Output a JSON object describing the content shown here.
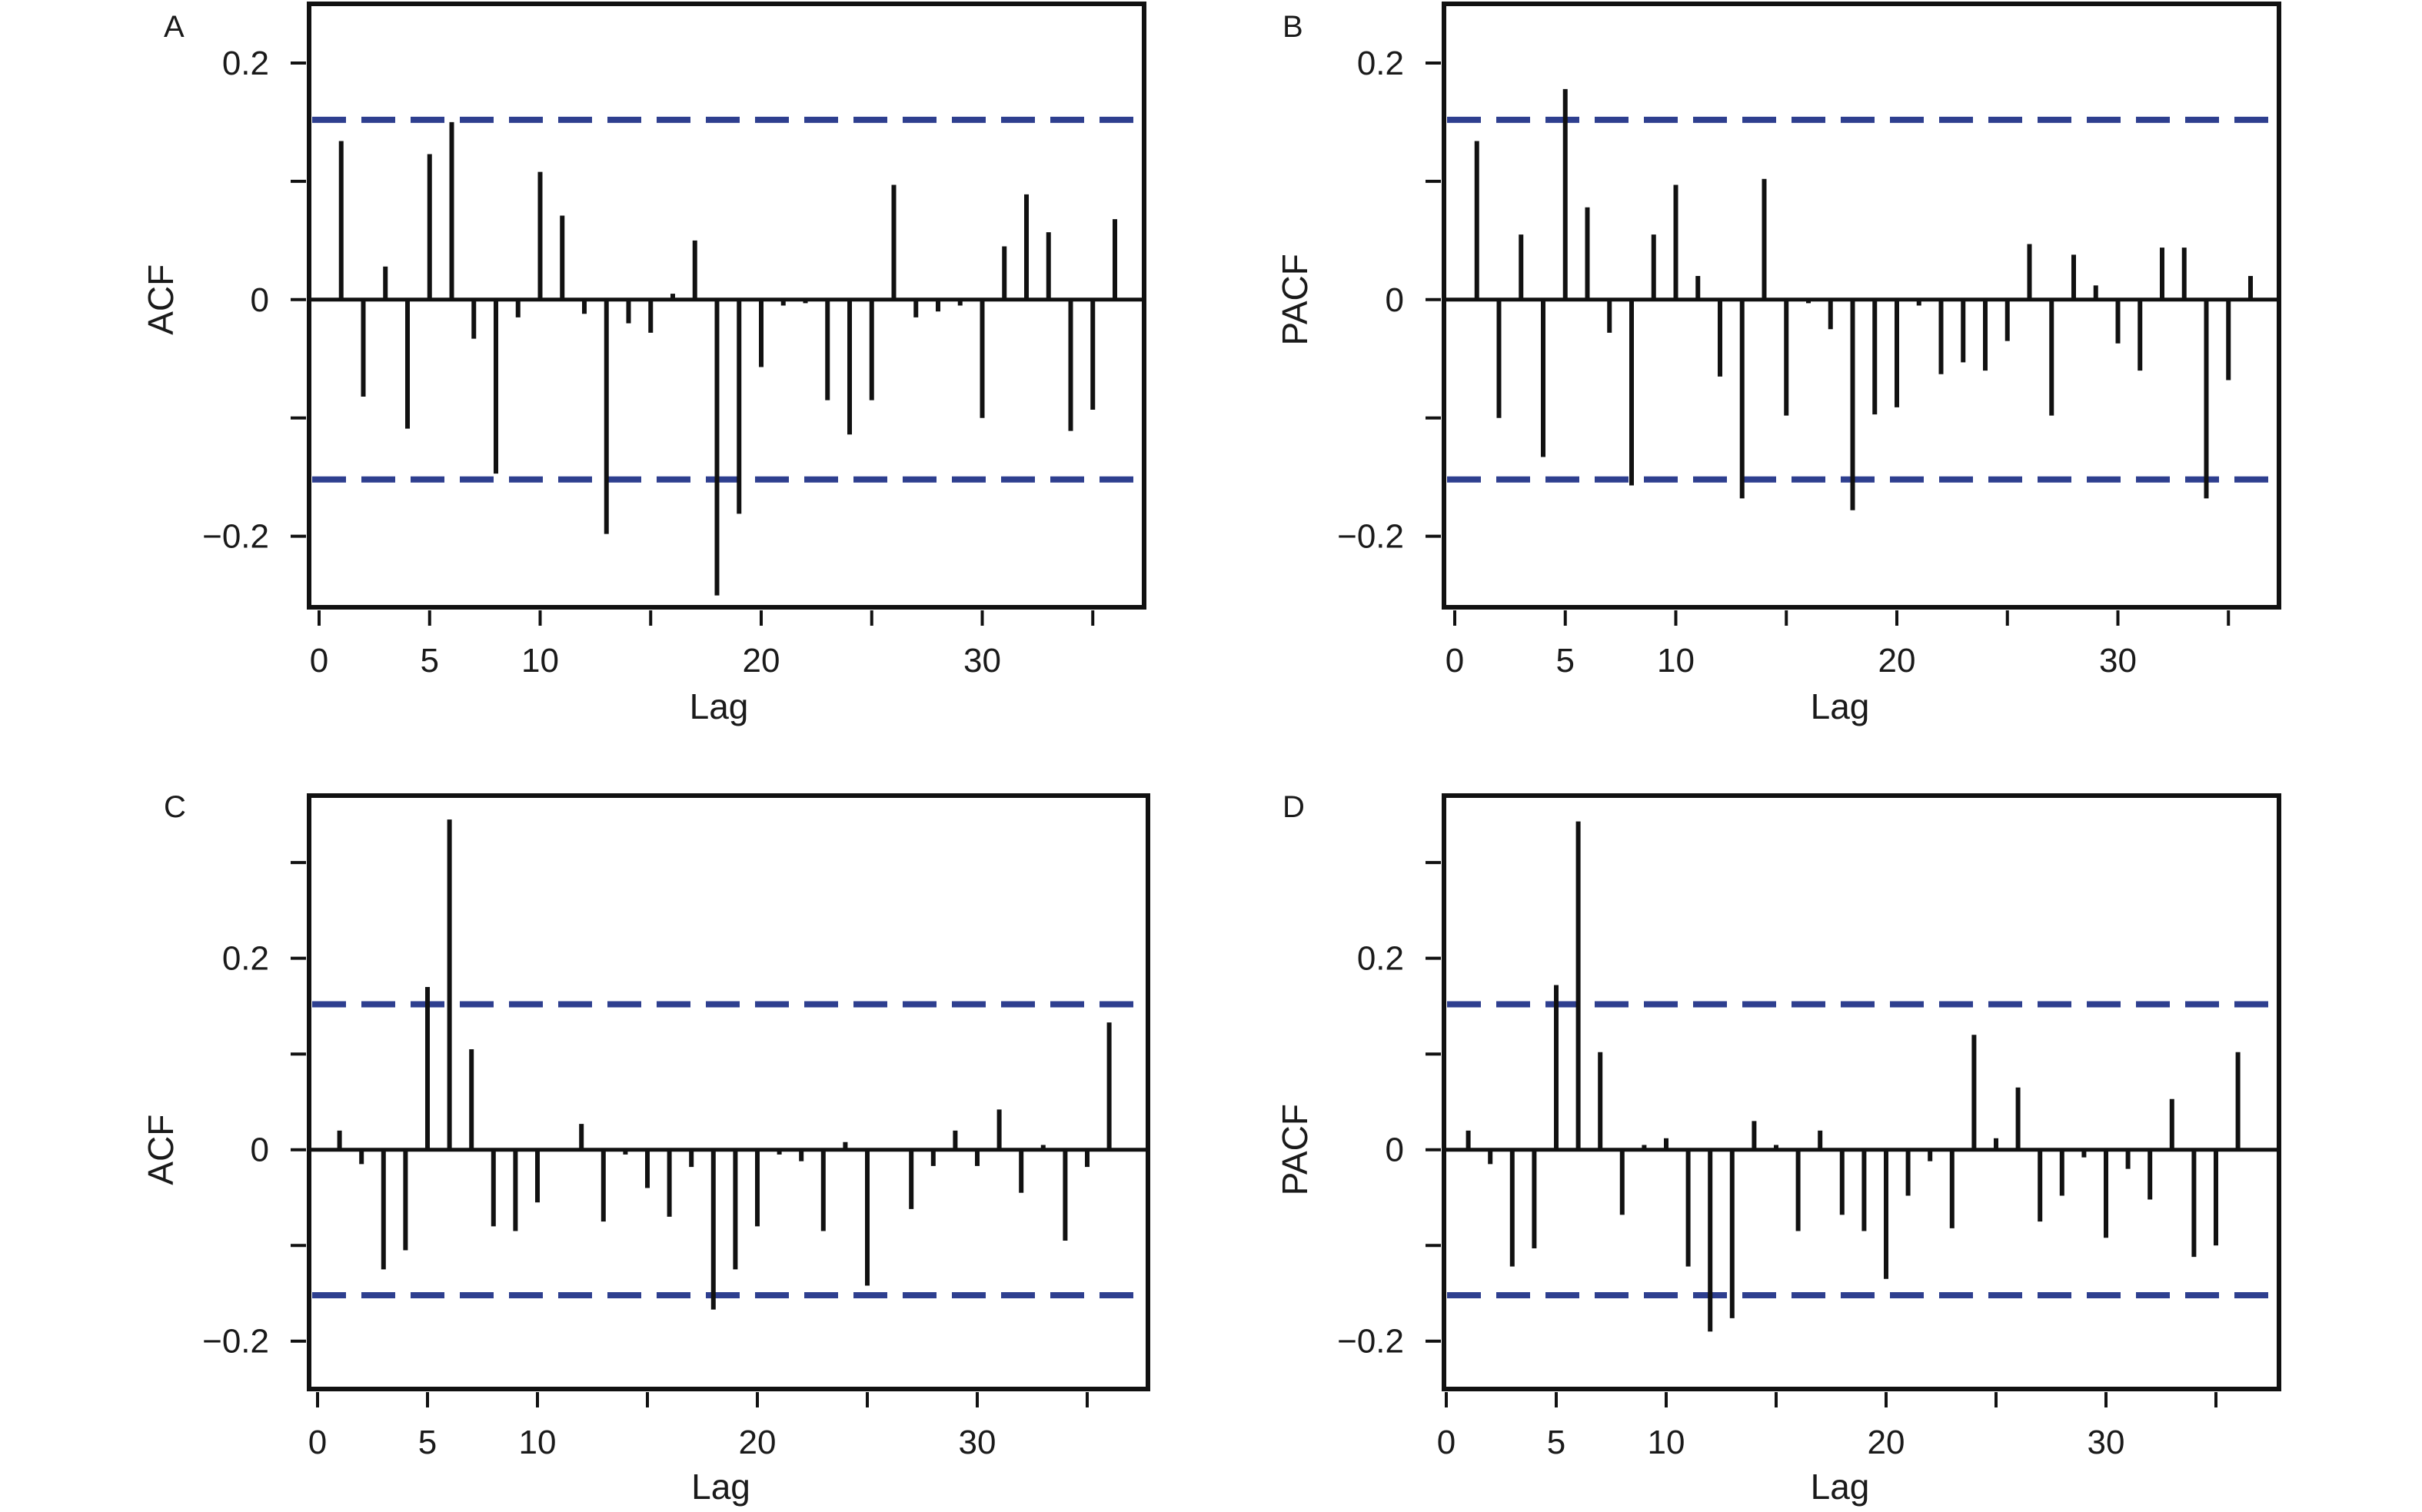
{
  "chart_data": [
    {
      "panel": "A",
      "type": "bar",
      "xlabel": "Lag",
      "ylabel": "ACF",
      "xlim": [
        0,
        37
      ],
      "ylim": [
        -0.26,
        0.25
      ],
      "xticks": [
        0,
        5,
        10,
        15,
        20,
        25,
        30,
        35
      ],
      "xtick_labels": [
        "0",
        "5",
        "10",
        "",
        "20",
        "",
        "30",
        ""
      ],
      "yticks": [
        -0.2,
        -0.1,
        0,
        0.1,
        0.2
      ],
      "ytick_labels": [
        "−0.2",
        "",
        "0",
        "",
        "0.2"
      ],
      "confidence_band": 0.152,
      "x": [
        1,
        2,
        3,
        4,
        5,
        6,
        7,
        8,
        9,
        10,
        11,
        12,
        13,
        14,
        15,
        16,
        17,
        18,
        19,
        20,
        21,
        22,
        23,
        24,
        25,
        26,
        27,
        28,
        29,
        30,
        31,
        32,
        33,
        34,
        35,
        36
      ],
      "values": [
        0.134,
        -0.082,
        0.028,
        -0.109,
        0.123,
        0.15,
        -0.033,
        -0.147,
        -0.015,
        0.108,
        0.071,
        -0.012,
        -0.198,
        -0.02,
        -0.028,
        0.005,
        0.05,
        -0.25,
        -0.181,
        -0.057,
        -0.005,
        -0.003,
        -0.085,
        -0.114,
        -0.085,
        0.097,
        -0.015,
        -0.01,
        -0.005,
        -0.1,
        0.045,
        0.089,
        0.057,
        -0.111,
        -0.093,
        0.068
      ],
      "colors": {
        "bars": "#111111",
        "band": "#2e3f8f",
        "frame": "#111111"
      }
    },
    {
      "panel": "B",
      "type": "bar",
      "xlabel": "Lag",
      "ylabel": "PACF",
      "xlim": [
        0,
        37
      ],
      "ylim": [
        -0.26,
        0.25
      ],
      "xticks": [
        0,
        5,
        10,
        15,
        20,
        25,
        30,
        35
      ],
      "xtick_labels": [
        "0",
        "5",
        "10",
        "",
        "20",
        "",
        "30",
        ""
      ],
      "yticks": [
        -0.2,
        -0.1,
        0,
        0.1,
        0.2
      ],
      "ytick_labels": [
        "−0.2",
        "",
        "0",
        "",
        "0.2"
      ],
      "confidence_band": 0.152,
      "x": [
        1,
        2,
        3,
        4,
        5,
        6,
        7,
        8,
        9,
        10,
        11,
        12,
        13,
        14,
        15,
        16,
        17,
        18,
        19,
        20,
        21,
        22,
        23,
        24,
        25,
        26,
        27,
        28,
        29,
        30,
        31,
        32,
        33,
        34,
        35,
        36
      ],
      "values": [
        0.134,
        -0.1,
        0.055,
        -0.133,
        0.178,
        0.078,
        -0.028,
        -0.157,
        0.055,
        0.097,
        0.02,
        -0.065,
        -0.168,
        0.102,
        -0.098,
        -0.003,
        -0.025,
        -0.178,
        -0.097,
        -0.091,
        -0.005,
        -0.063,
        -0.053,
        -0.06,
        -0.035,
        0.047,
        -0.098,
        0.038,
        0.012,
        -0.037,
        -0.06,
        0.044,
        0.044,
        -0.168,
        -0.068,
        0.02
      ],
      "colors": {
        "bars": "#111111",
        "band": "#2e3f8f",
        "frame": "#111111"
      }
    },
    {
      "panel": "C",
      "type": "bar",
      "xlabel": "Lag",
      "ylabel": "ACF",
      "xlim": [
        0,
        37
      ],
      "ylim": [
        -0.25,
        0.37
      ],
      "xticks": [
        0,
        5,
        10,
        15,
        20,
        25,
        30,
        35
      ],
      "xtick_labels": [
        "0",
        "5",
        "10",
        "",
        "20",
        "",
        "30",
        ""
      ],
      "yticks": [
        -0.2,
        -0.1,
        0,
        0.1,
        0.2,
        0.3
      ],
      "ytick_labels": [
        "−0.2",
        "",
        "0",
        "",
        "0.2",
        ""
      ],
      "confidence_band": 0.152,
      "x": [
        1,
        2,
        3,
        4,
        5,
        6,
        7,
        8,
        9,
        10,
        11,
        12,
        13,
        14,
        15,
        16,
        17,
        18,
        19,
        20,
        21,
        22,
        23,
        24,
        25,
        26,
        27,
        28,
        29,
        30,
        31,
        32,
        33,
        34,
        35,
        36
      ],
      "values": [
        0.02,
        -0.015,
        -0.125,
        -0.105,
        0.17,
        0.345,
        0.105,
        -0.08,
        -0.085,
        -0.055,
        0.0,
        0.027,
        -0.075,
        -0.005,
        -0.04,
        -0.07,
        -0.018,
        -0.167,
        -0.125,
        -0.08,
        -0.005,
        -0.012,
        -0.085,
        0.008,
        -0.142,
        0.0,
        -0.062,
        -0.017,
        0.02,
        -0.017,
        0.042,
        -0.045,
        0.005,
        -0.095,
        -0.018,
        0.133
      ],
      "colors": {
        "bars": "#111111",
        "band": "#2e3f8f",
        "frame": "#111111"
      }
    },
    {
      "panel": "D",
      "type": "bar",
      "xlabel": "Lag",
      "ylabel": "PACF",
      "xlim": [
        0,
        37
      ],
      "ylim": [
        -0.25,
        0.37
      ],
      "xticks": [
        0,
        5,
        10,
        15,
        20,
        25,
        30,
        35
      ],
      "xtick_labels": [
        "0",
        "5",
        "10",
        "",
        "20",
        "",
        "30",
        ""
      ],
      "yticks": [
        -0.2,
        -0.1,
        0,
        0.1,
        0.2,
        0.3
      ],
      "ytick_labels": [
        "−0.2",
        "",
        "0",
        "",
        "0.2",
        ""
      ],
      "confidence_band": 0.152,
      "x": [
        1,
        2,
        3,
        4,
        5,
        6,
        7,
        8,
        9,
        10,
        11,
        12,
        13,
        14,
        15,
        16,
        17,
        18,
        19,
        20,
        21,
        22,
        23,
        24,
        25,
        26,
        27,
        28,
        29,
        30,
        31,
        32,
        33,
        34,
        35,
        36
      ],
      "values": [
        0.02,
        -0.015,
        -0.122,
        -0.103,
        0.172,
        0.343,
        0.102,
        -0.068,
        0.005,
        0.012,
        -0.122,
        -0.19,
        -0.176,
        0.03,
        0.005,
        -0.085,
        0.02,
        -0.068,
        -0.085,
        -0.135,
        -0.048,
        -0.012,
        -0.082,
        0.12,
        0.012,
        0.065,
        -0.075,
        -0.048,
        -0.008,
        -0.092,
        -0.02,
        -0.052,
        0.053,
        -0.112,
        -0.1,
        0.102
      ],
      "colors": {
        "bars": "#111111",
        "band": "#2e3f8f",
        "frame": "#111111"
      }
    }
  ]
}
